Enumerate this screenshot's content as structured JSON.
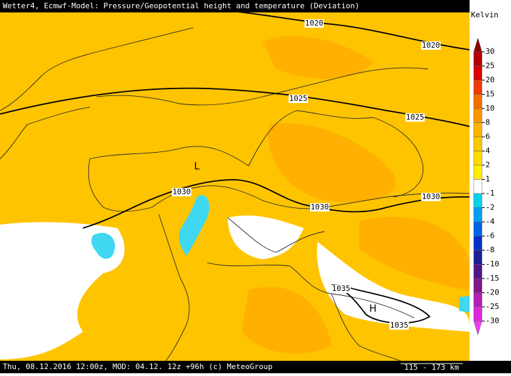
{
  "header": {
    "title": "Wetter4, Ecmwf-Model: Pressure/Geopotential height and temperature (Deviation)"
  },
  "footer": {
    "text": "Thu, 08.12.2016 12:00z, MOD: 04.12. 12z +96h (c) MeteoGroup",
    "scale": "115 - 173 km"
  },
  "legend": {
    "unit": "Kelvin",
    "ticks": [
      30,
      25,
      20,
      15,
      10,
      8,
      6,
      4,
      2,
      1,
      -1,
      -2,
      -4,
      -6,
      -8,
      -10,
      -15,
      -20,
      -25,
      -30
    ],
    "colors": [
      "#8c0000",
      "#b40000",
      "#dc0000",
      "#f03c00",
      "#f56e00",
      "#fa9600",
      "#ffb400",
      "#ffc800",
      "#ffdc00",
      "#fff000",
      "#ffffff",
      "#00d2f0",
      "#00a0f0",
      "#0064e6",
      "#0032c8",
      "#1e1e96",
      "#50148c",
      "#82148c",
      "#b41eb4",
      "#dc28dc",
      "#f03cf0"
    ]
  },
  "map": {
    "isobar_labels": [
      "1020",
      "1020",
      "1025",
      "1025",
      "1030",
      "1030",
      "1030",
      "1035",
      "1035"
    ],
    "pressure_centers": [
      "L",
      "H"
    ]
  }
}
